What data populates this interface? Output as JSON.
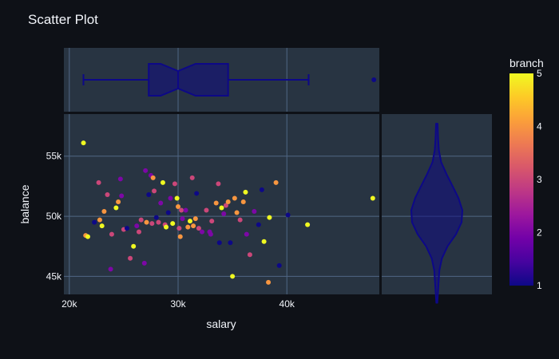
{
  "chart_data": {
    "type": "scatter",
    "title": "Scatter Plot",
    "xlabel": "salary",
    "ylabel": "balance",
    "xlim": [
      19500,
      48500
    ],
    "ylim": [
      43500,
      58500
    ],
    "x_ticks": [
      {
        "value": 20000,
        "label": "20k"
      },
      {
        "value": 30000,
        "label": "30k"
      },
      {
        "value": 40000,
        "label": "40k"
      }
    ],
    "y_ticks": [
      {
        "value": 45000,
        "label": "45k"
      },
      {
        "value": 50000,
        "label": "50k"
      },
      {
        "value": 55000,
        "label": "55k"
      }
    ],
    "colorbar": {
      "title": "branch",
      "min": 1,
      "max": 5,
      "ticks": [
        "1",
        "2",
        "3",
        "4",
        "5"
      ],
      "colors": [
        "#0d0887",
        "#46039f",
        "#7201a8",
        "#9c179e",
        "#bd3786",
        "#d8576b",
        "#ed7953",
        "#fb9f3a",
        "#fdca26",
        "#f0f921"
      ]
    },
    "marginal_x": {
      "type": "box",
      "notched": true,
      "whisker_low": 21300,
      "q1": 27300,
      "median": 30000,
      "q3": 34600,
      "whisker_high": 42000,
      "outliers": [
        48000
      ],
      "color": "#0d0887"
    },
    "marginal_y": {
      "type": "violin",
      "min": 42800,
      "max": 57700,
      "median": 50000,
      "color": "#0d0887"
    },
    "grid": true,
    "points": [
      [
        21300,
        56100,
        5
      ],
      [
        21500,
        48400,
        4
      ],
      [
        21700,
        48300,
        5
      ],
      [
        22300,
        49500,
        1
      ],
      [
        22700,
        52800,
        3
      ],
      [
        22800,
        49700,
        4
      ],
      [
        23000,
        49200,
        5
      ],
      [
        23200,
        50400,
        4
      ],
      [
        23500,
        51800,
        3
      ],
      [
        23800,
        45600,
        2
      ],
      [
        23900,
        48500,
        3
      ],
      [
        24300,
        50700,
        5
      ],
      [
        24500,
        51200,
        4
      ],
      [
        24700,
        53100,
        2
      ],
      [
        24800,
        51700,
        2
      ],
      [
        25000,
        48900,
        3
      ],
      [
        25300,
        49000,
        1
      ],
      [
        25600,
        46500,
        3
      ],
      [
        25900,
        47500,
        5
      ],
      [
        26200,
        49200,
        2
      ],
      [
        26400,
        48700,
        3
      ],
      [
        26600,
        49700,
        3
      ],
      [
        26900,
        46100,
        2
      ],
      [
        27000,
        53800,
        2
      ],
      [
        27100,
        49500,
        4
      ],
      [
        27300,
        51800,
        1
      ],
      [
        27500,
        53400,
        2
      ],
      [
        27600,
        49400,
        3
      ],
      [
        27700,
        53200,
        4
      ],
      [
        27800,
        52100,
        3
      ],
      [
        28000,
        49900,
        1
      ],
      [
        28200,
        49500,
        3
      ],
      [
        28400,
        51100,
        2
      ],
      [
        28600,
        52800,
        5
      ],
      [
        28800,
        49300,
        3
      ],
      [
        28900,
        49100,
        5
      ],
      [
        29100,
        50300,
        1
      ],
      [
        29300,
        51500,
        2
      ],
      [
        29500,
        49400,
        5
      ],
      [
        29700,
        52700,
        3
      ],
      [
        29900,
        51500,
        5
      ],
      [
        30000,
        50800,
        4
      ],
      [
        30100,
        49000,
        3
      ],
      [
        30200,
        48300,
        4
      ],
      [
        30300,
        50500,
        3
      ],
      [
        30400,
        49800,
        2
      ],
      [
        30700,
        50500,
        2
      ],
      [
        30900,
        49100,
        4
      ],
      [
        31100,
        49600,
        5
      ],
      [
        31300,
        53200,
        3
      ],
      [
        31400,
        49200,
        4
      ],
      [
        31600,
        49800,
        4
      ],
      [
        31700,
        51900,
        1
      ],
      [
        31900,
        49000,
        3
      ],
      [
        32200,
        48700,
        2
      ],
      [
        32600,
        50500,
        3
      ],
      [
        32900,
        48700,
        2
      ],
      [
        33000,
        48500,
        2
      ],
      [
        33100,
        49600,
        3
      ],
      [
        33500,
        51100,
        4
      ],
      [
        33700,
        52700,
        3
      ],
      [
        33800,
        47800,
        1
      ],
      [
        34000,
        50700,
        5
      ],
      [
        34200,
        50200,
        2
      ],
      [
        34400,
        50900,
        3
      ],
      [
        34600,
        51200,
        4
      ],
      [
        34800,
        47800,
        1
      ],
      [
        35000,
        45000,
        5
      ],
      [
        35200,
        51500,
        4
      ],
      [
        35400,
        50300,
        4
      ],
      [
        35700,
        49700,
        3
      ],
      [
        36000,
        51200,
        4
      ],
      [
        36200,
        52000,
        5
      ],
      [
        36300,
        48500,
        2
      ],
      [
        36600,
        46800,
        3
      ],
      [
        37000,
        50400,
        2
      ],
      [
        37400,
        49300,
        1
      ],
      [
        37700,
        52200,
        1
      ],
      [
        37900,
        47900,
        5
      ],
      [
        38300,
        44500,
        4
      ],
      [
        38400,
        49900,
        5
      ],
      [
        39000,
        52800,
        4
      ],
      [
        39300,
        45900,
        1
      ],
      [
        40100,
        50100,
        1
      ],
      [
        41900,
        49300,
        5
      ],
      [
        47900,
        51500,
        5
      ]
    ]
  }
}
